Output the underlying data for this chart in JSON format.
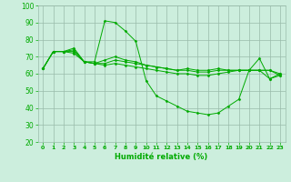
{
  "xlabel": "Humidité relative (%)",
  "xlim": [
    -0.5,
    23.5
  ],
  "ylim": [
    20,
    100
  ],
  "yticks": [
    20,
    30,
    40,
    50,
    60,
    70,
    80,
    90,
    100
  ],
  "xticks": [
    0,
    1,
    2,
    3,
    4,
    5,
    6,
    7,
    8,
    9,
    10,
    11,
    12,
    13,
    14,
    15,
    16,
    17,
    18,
    19,
    20,
    21,
    22,
    23
  ],
  "bg_color": "#cceedd",
  "grid_color": "#99bbaa",
  "line_color": "#00aa00",
  "lines": [
    [
      63,
      73,
      73,
      75,
      67,
      67,
      91,
      90,
      85,
      79,
      56,
      47,
      44,
      41,
      38,
      37,
      36,
      37,
      41,
      45,
      62,
      69,
      57,
      60
    ],
    [
      63,
      73,
      73,
      74,
      67,
      66,
      68,
      70,
      68,
      67,
      65,
      64,
      63,
      62,
      63,
      62,
      62,
      63,
      62,
      62,
      62,
      62,
      62,
      59
    ],
    [
      63,
      73,
      73,
      73,
      67,
      66,
      66,
      68,
      67,
      66,
      65,
      64,
      63,
      62,
      62,
      61,
      61,
      62,
      62,
      62,
      62,
      62,
      62,
      60
    ],
    [
      63,
      73,
      73,
      72,
      67,
      66,
      65,
      66,
      65,
      64,
      63,
      62,
      61,
      60,
      60,
      59,
      59,
      60,
      61,
      62,
      62,
      62,
      57,
      59
    ]
  ]
}
